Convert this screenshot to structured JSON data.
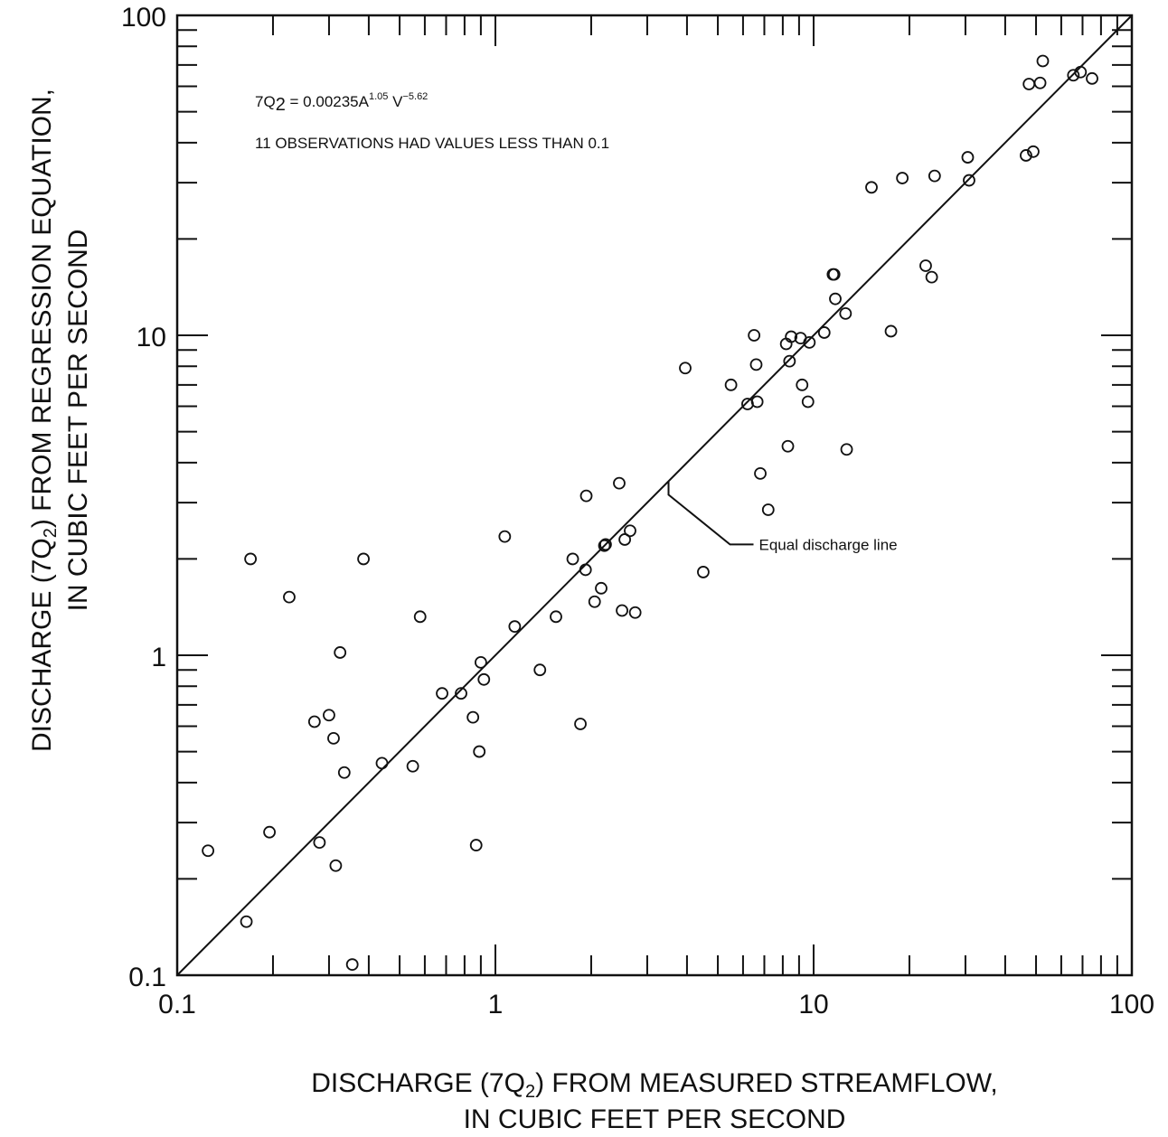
{
  "chart_data": {
    "type": "scatter",
    "x_scale": "log",
    "y_scale": "log",
    "xlim": [
      0.1,
      100
    ],
    "ylim": [
      0.1,
      100
    ],
    "grid": false,
    "x_ticks": [
      "0.1",
      "1",
      "10",
      "100"
    ],
    "y_ticks": [
      "0.1",
      "1",
      "10",
      "100"
    ],
    "xlabel": {
      "line1_prefix": "DISCHARGE (7Q",
      "line1_sub": "2",
      "line1_suffix": ") FROM MEASURED STREAMFLOW,",
      "line2": "IN CUBIC FEET PER SECOND"
    },
    "ylabel": {
      "line1_prefix": "DISCHARGE (7Q",
      "line1_sub": "2",
      "line1_suffix": ") FROM REGRESSION EQUATION,",
      "line2": "IN CUBIC FEET PER SECOND"
    },
    "equation": {
      "prefix": "7Q",
      "sub": "2",
      "middle": " = 0.00235A",
      "sup1": "1.05",
      "v": " V",
      "sup2": "−5.62"
    },
    "note": "11 OBSERVATIONS HAD VALUES LESS THAN 0.1",
    "line_label": "Equal discharge line",
    "line_label_anchor": {
      "x": 3.5,
      "y": 3.5
    },
    "reference_line": {
      "name": "Equal discharge line",
      "x": [
        0.1,
        100
      ],
      "y": [
        0.1,
        100
      ]
    },
    "points": [
      {
        "x": 0.125,
        "y": 0.245
      },
      {
        "x": 0.165,
        "y": 0.147
      },
      {
        "x": 0.17,
        "y": 2.0
      },
      {
        "x": 0.195,
        "y": 0.28
      },
      {
        "x": 0.225,
        "y": 1.52
      },
      {
        "x": 0.27,
        "y": 0.62
      },
      {
        "x": 0.28,
        "y": 0.26
      },
      {
        "x": 0.3,
        "y": 0.65
      },
      {
        "x": 0.31,
        "y": 0.55
      },
      {
        "x": 0.315,
        "y": 0.22
      },
      {
        "x": 0.325,
        "y": 1.02
      },
      {
        "x": 0.335,
        "y": 0.43
      },
      {
        "x": 0.355,
        "y": 0.108
      },
      {
        "x": 0.385,
        "y": 2.0
      },
      {
        "x": 0.44,
        "y": 0.46
      },
      {
        "x": 0.55,
        "y": 0.45
      },
      {
        "x": 0.58,
        "y": 1.32
      },
      {
        "x": 0.68,
        "y": 0.76
      },
      {
        "x": 0.78,
        "y": 0.76
      },
      {
        "x": 0.85,
        "y": 0.64
      },
      {
        "x": 0.87,
        "y": 0.255
      },
      {
        "x": 0.89,
        "y": 0.5
      },
      {
        "x": 0.9,
        "y": 0.95
      },
      {
        "x": 0.92,
        "y": 0.84
      },
      {
        "x": 1.07,
        "y": 2.35
      },
      {
        "x": 1.15,
        "y": 1.23
      },
      {
        "x": 1.38,
        "y": 0.9
      },
      {
        "x": 1.55,
        "y": 1.32
      },
      {
        "x": 1.75,
        "y": 2.0
      },
      {
        "x": 1.85,
        "y": 0.61
      },
      {
        "x": 1.92,
        "y": 1.85
      },
      {
        "x": 1.93,
        "y": 3.15
      },
      {
        "x": 2.05,
        "y": 1.47
      },
      {
        "x": 2.15,
        "y": 1.62
      },
      {
        "x": 2.2,
        "y": 2.2
      },
      {
        "x": 2.22,
        "y": 2.22
      },
      {
        "x": 2.45,
        "y": 3.45
      },
      {
        "x": 2.5,
        "y": 1.38
      },
      {
        "x": 2.55,
        "y": 2.3
      },
      {
        "x": 2.65,
        "y": 2.45
      },
      {
        "x": 2.75,
        "y": 1.36
      },
      {
        "x": 3.95,
        "y": 7.9
      },
      {
        "x": 4.5,
        "y": 1.82
      },
      {
        "x": 5.5,
        "y": 7.0
      },
      {
        "x": 6.2,
        "y": 6.1
      },
      {
        "x": 6.5,
        "y": 10.0
      },
      {
        "x": 6.6,
        "y": 8.1
      },
      {
        "x": 6.65,
        "y": 6.2
      },
      {
        "x": 6.8,
        "y": 3.7
      },
      {
        "x": 7.2,
        "y": 2.85
      },
      {
        "x": 8.2,
        "y": 9.4
      },
      {
        "x": 8.3,
        "y": 4.5
      },
      {
        "x": 8.4,
        "y": 8.3
      },
      {
        "x": 8.5,
        "y": 9.9
      },
      {
        "x": 9.1,
        "y": 9.8
      },
      {
        "x": 9.2,
        "y": 7.0
      },
      {
        "x": 9.6,
        "y": 6.2
      },
      {
        "x": 9.7,
        "y": 9.5
      },
      {
        "x": 10.8,
        "y": 10.2
      },
      {
        "x": 11.5,
        "y": 15.5
      },
      {
        "x": 11.6,
        "y": 15.5
      },
      {
        "x": 11.7,
        "y": 13.0
      },
      {
        "x": 12.6,
        "y": 11.7
      },
      {
        "x": 12.7,
        "y": 4.4
      },
      {
        "x": 15.2,
        "y": 29.0
      },
      {
        "x": 17.5,
        "y": 10.3
      },
      {
        "x": 19.0,
        "y": 31.0
      },
      {
        "x": 22.5,
        "y": 16.5
      },
      {
        "x": 23.5,
        "y": 15.2
      },
      {
        "x": 24.0,
        "y": 31.5
      },
      {
        "x": 30.5,
        "y": 36.0
      },
      {
        "x": 30.8,
        "y": 30.5
      },
      {
        "x": 46.5,
        "y": 36.5
      },
      {
        "x": 47.5,
        "y": 61.0
      },
      {
        "x": 49.0,
        "y": 37.5
      },
      {
        "x": 51.5,
        "y": 61.5
      },
      {
        "x": 52.5,
        "y": 72.0
      },
      {
        "x": 65.5,
        "y": 65.0
      },
      {
        "x": 69.0,
        "y": 66.5
      },
      {
        "x": 75.0,
        "y": 63.5
      }
    ]
  }
}
